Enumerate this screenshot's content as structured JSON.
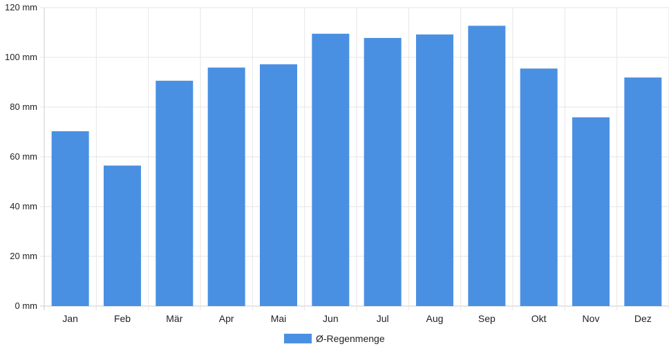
{
  "chart_data": {
    "type": "bar",
    "categories": [
      "Jan",
      "Feb",
      "Mär",
      "Apr",
      "Mai",
      "Jun",
      "Jul",
      "Aug",
      "Sep",
      "Okt",
      "Nov",
      "Dez"
    ],
    "series": [
      {
        "name": "Ø-Regenmenge",
        "values": [
          70.3,
          56.5,
          90.6,
          95.9,
          97.2,
          109.5,
          107.8,
          109.2,
          112.7,
          95.5,
          75.9,
          91.9
        ],
        "color": "#4a90e2"
      }
    ],
    "yticks": [
      "0 mm",
      "20 mm",
      "40 mm",
      "60 mm",
      "80 mm",
      "100 mm",
      "120 mm"
    ],
    "ylim": [
      0,
      120
    ],
    "yunit": "mm",
    "grid": true,
    "legend": "bottom-center"
  }
}
